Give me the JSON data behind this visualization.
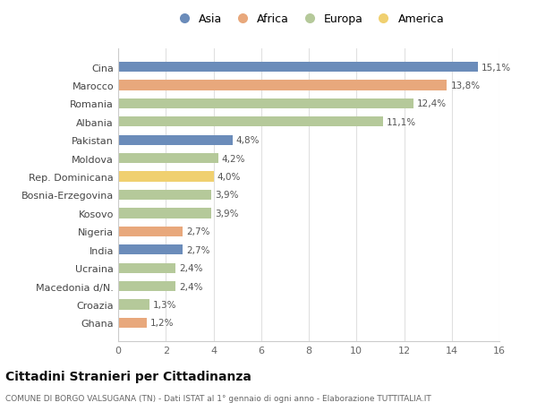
{
  "countries": [
    "Cina",
    "Marocco",
    "Romania",
    "Albania",
    "Pakistan",
    "Moldova",
    "Rep. Dominicana",
    "Bosnia-Erzegovina",
    "Kosovo",
    "Nigeria",
    "India",
    "Ucraina",
    "Macedonia d/N.",
    "Croazia",
    "Ghana"
  ],
  "values": [
    15.1,
    13.8,
    12.4,
    11.1,
    4.8,
    4.2,
    4.0,
    3.9,
    3.9,
    2.7,
    2.7,
    2.4,
    2.4,
    1.3,
    1.2
  ],
  "labels": [
    "15,1%",
    "13,8%",
    "12,4%",
    "11,1%",
    "4,8%",
    "4,2%",
    "4,0%",
    "3,9%",
    "3,9%",
    "2,7%",
    "2,7%",
    "2,4%",
    "2,4%",
    "1,3%",
    "1,2%"
  ],
  "continents": [
    "Asia",
    "Africa",
    "Europa",
    "Europa",
    "Asia",
    "Europa",
    "America",
    "Europa",
    "Europa",
    "Africa",
    "Asia",
    "Europa",
    "Europa",
    "Europa",
    "Africa"
  ],
  "continent_colors": {
    "Asia": "#6b8cba",
    "Africa": "#e8a87c",
    "Europa": "#b5c99a",
    "America": "#f0d070"
  },
  "legend_order": [
    "Asia",
    "Africa",
    "Europa",
    "America"
  ],
  "title": "Cittadini Stranieri per Cittadinanza",
  "subtitle": "COMUNE DI BORGO VALSUGANA (TN) - Dati ISTAT al 1° gennaio di ogni anno - Elaborazione TUTTITALIA.IT",
  "xlim": [
    0,
    16
  ],
  "xticks": [
    0,
    2,
    4,
    6,
    8,
    10,
    12,
    14,
    16
  ],
  "background_color": "#ffffff",
  "grid_color": "#e0e0e0"
}
